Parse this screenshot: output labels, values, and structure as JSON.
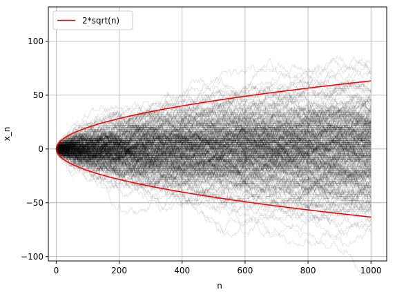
{
  "chart_data": {
    "type": "line",
    "title": "",
    "xlabel": "n",
    "ylabel": "x_n",
    "xlim": [
      -25,
      1050
    ],
    "ylim": [
      -104,
      132
    ],
    "xticks": [
      0,
      200,
      400,
      600,
      800,
      1000
    ],
    "yticks": [
      -100,
      -50,
      0,
      50,
      100
    ],
    "xtick_labels": [
      "0",
      "200",
      "400",
      "600",
      "800",
      "1000"
    ],
    "ytick_labels": [
      "−100",
      "−50",
      "0",
      "50",
      "100"
    ],
    "grid": true,
    "legend": {
      "placement": "top-left",
      "entries": [
        "2*sqrt(n)"
      ]
    },
    "random_walks": {
      "description_count": 300,
      "steps": 1000,
      "step_size": 1,
      "color": "#000000",
      "opacity": 0.1
    },
    "series": [
      {
        "name": "2*sqrt(n)",
        "color": "#ff0000",
        "formula": "y = 2*sqrt(n)",
        "x": [
          0,
          10,
          50,
          100,
          200,
          400,
          600,
          800,
          1000
        ],
        "values": [
          0,
          6.3,
          14.1,
          20,
          28.3,
          40,
          49,
          56.6,
          63.2
        ]
      },
      {
        "name": "",
        "color": "#ff0000",
        "formula": "y = -2*sqrt(n)",
        "x": [
          0,
          10,
          50,
          100,
          200,
          400,
          600,
          800,
          1000
        ],
        "values": [
          0,
          -6.3,
          -14.1,
          -20,
          -28.3,
          -40,
          -49,
          -56.6,
          -63.2
        ]
      }
    ]
  }
}
